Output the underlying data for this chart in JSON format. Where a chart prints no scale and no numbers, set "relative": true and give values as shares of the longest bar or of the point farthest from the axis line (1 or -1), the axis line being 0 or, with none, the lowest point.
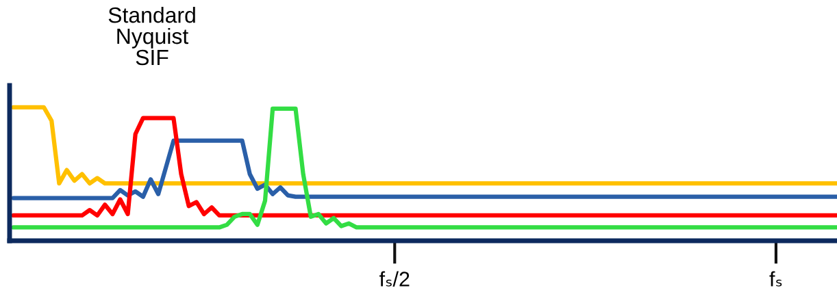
{
  "chart_data": {
    "type": "line",
    "relative": true,
    "title": "Standard\nNyquist\nSIF",
    "grid": false,
    "legend": false,
    "marker": "none",
    "line_style": "solid",
    "categories": [
      null,
      null,
      null,
      null,
      null,
      null,
      null,
      null,
      null,
      null,
      null,
      null,
      null,
      null,
      null,
      null,
      null,
      null,
      null,
      null,
      null,
      null,
      null,
      null,
      null,
      null,
      null,
      null,
      null,
      null,
      null,
      null,
      null,
      null,
      null,
      null,
      null,
      null,
      null,
      null,
      null,
      null,
      null,
      null,
      null,
      null,
      null,
      null,
      null,
      null,
      "fₛ/2",
      null,
      null,
      null,
      null,
      null,
      null,
      null,
      null,
      null,
      null,
      null,
      null,
      null,
      null,
      null,
      null,
      null,
      null,
      null,
      null,
      null,
      null,
      null,
      null,
      null,
      null,
      null,
      null,
      null,
      null,
      null,
      null,
      null,
      null,
      null,
      null,
      null,
      null,
      null,
      null,
      null,
      null,
      null,
      null,
      null,
      null,
      null,
      null,
      null,
      "fₛ",
      null,
      null,
      null,
      null,
      null,
      null,
      null,
      null
    ],
    "series": [
      {
        "color": "#ffc000",
        "values": [
          1,
          1,
          1,
          1,
          1,
          0.9,
          0.43,
          0.53,
          0.45,
          0.5,
          0.43,
          0.47,
          0.43,
          0.43,
          0.43,
          0.43,
          0.43,
          0.43,
          0.43,
          0.43,
          0.43,
          0.43,
          0.43,
          0.43,
          0.43,
          0.43,
          0.43,
          0.43,
          0.43,
          0.43,
          0.43,
          0.43,
          0.43,
          0.43,
          0.43,
          0.43,
          0.43,
          0.43,
          0.43,
          0.43,
          0.43,
          0.43,
          0.43,
          0.43,
          0.43,
          0.43,
          0.43,
          0.43,
          0.43,
          0.43,
          0.43,
          0.43,
          0.43,
          0.43,
          0.43,
          0.43,
          0.43,
          0.43,
          0.43,
          0.43,
          0.43,
          0.43,
          0.43,
          0.43,
          0.43,
          0.43,
          0.43,
          0.43,
          0.43,
          0.43,
          0.43,
          0.43,
          0.43,
          0.43,
          0.43,
          0.43,
          0.43,
          0.43,
          0.43,
          0.43,
          0.43,
          0.43,
          0.43,
          0.43,
          0.43,
          0.43,
          0.43,
          0.43,
          0.43,
          0.43,
          0.43,
          0.43,
          0.43,
          0.43,
          0.43,
          0.43,
          0.43,
          0.43,
          0.43,
          0.43,
          0.43,
          0.43,
          0.43,
          0.43,
          0.43,
          0.43,
          0.43,
          0.43,
          0.43
        ]
      },
      {
        "color": "#2a5fa8",
        "values": [
          0.32,
          0.32,
          0.32,
          0.32,
          0.32,
          0.32,
          0.32,
          0.32,
          0.32,
          0.32,
          0.32,
          0.32,
          0.32,
          0.32,
          0.38,
          0.34,
          0.37,
          0.33,
          0.46,
          0.35,
          0.55,
          0.75,
          0.75,
          0.75,
          0.75,
          0.75,
          0.75,
          0.75,
          0.75,
          0.75,
          0.75,
          0.5,
          0.39,
          0.42,
          0.35,
          0.4,
          0.34,
          0.33,
          0.33,
          0.33,
          0.33,
          0.33,
          0.33,
          0.33,
          0.33,
          0.33,
          0.33,
          0.33,
          0.33,
          0.33,
          0.33,
          0.33,
          0.33,
          0.33,
          0.33,
          0.33,
          0.33,
          0.33,
          0.33,
          0.33,
          0.33,
          0.33,
          0.33,
          0.33,
          0.33,
          0.33,
          0.33,
          0.33,
          0.33,
          0.33,
          0.33,
          0.33,
          0.33,
          0.33,
          0.33,
          0.33,
          0.33,
          0.33,
          0.33,
          0.33,
          0.33,
          0.33,
          0.33,
          0.33,
          0.33,
          0.33,
          0.33,
          0.33,
          0.33,
          0.33,
          0.33,
          0.33,
          0.33,
          0.33,
          0.33,
          0.33,
          0.33,
          0.33,
          0.33,
          0.33,
          0.33,
          0.33,
          0.33,
          0.33,
          0.33,
          0.33,
          0.33,
          0.33,
          0.33
        ]
      },
      {
        "color": "#ff0000",
        "values": [
          0.19,
          0.19,
          0.19,
          0.19,
          0.19,
          0.19,
          0.19,
          0.19,
          0.19,
          0.19,
          0.23,
          0.19,
          0.27,
          0.2,
          0.31,
          0.2,
          0.8,
          0.92,
          0.92,
          0.92,
          0.92,
          0.92,
          0.5,
          0.26,
          0.29,
          0.2,
          0.25,
          0.19,
          0.19,
          0.19,
          0.19,
          0.19,
          0.19,
          0.19,
          0.19,
          0.19,
          0.19,
          0.19,
          0.19,
          0.19,
          0.19,
          0.19,
          0.19,
          0.19,
          0.19,
          0.19,
          0.19,
          0.19,
          0.19,
          0.19,
          0.19,
          0.19,
          0.19,
          0.19,
          0.19,
          0.19,
          0.19,
          0.19,
          0.19,
          0.19,
          0.19,
          0.19,
          0.19,
          0.19,
          0.19,
          0.19,
          0.19,
          0.19,
          0.19,
          0.19,
          0.19,
          0.19,
          0.19,
          0.19,
          0.19,
          0.19,
          0.19,
          0.19,
          0.19,
          0.19,
          0.19,
          0.19,
          0.19,
          0.19,
          0.19,
          0.19,
          0.19,
          0.19,
          0.19,
          0.19,
          0.19,
          0.19,
          0.19,
          0.19,
          0.19,
          0.19,
          0.19,
          0.19,
          0.19,
          0.19,
          0.19,
          0.19,
          0.19,
          0.19,
          0.19,
          0.19,
          0.19,
          0.19,
          0.19
        ]
      },
      {
        "color": "#33dd44",
        "values": [
          0.1,
          0.1,
          0.1,
          0.1,
          0.1,
          0.1,
          0.1,
          0.1,
          0.1,
          0.1,
          0.1,
          0.1,
          0.1,
          0.1,
          0.1,
          0.1,
          0.1,
          0.1,
          0.1,
          0.1,
          0.1,
          0.1,
          0.1,
          0.1,
          0.1,
          0.1,
          0.1,
          0.1,
          0.12,
          0.18,
          0.2,
          0.2,
          0.12,
          0.3,
          0.99,
          0.99,
          0.99,
          0.99,
          0.5,
          0.18,
          0.2,
          0.13,
          0.17,
          0.11,
          0.13,
          0.1,
          0.1,
          0.1,
          0.1,
          0.1,
          0.1,
          0.1,
          0.1,
          0.1,
          0.1,
          0.1,
          0.1,
          0.1,
          0.1,
          0.1,
          0.1,
          0.1,
          0.1,
          0.1,
          0.1,
          0.1,
          0.1,
          0.1,
          0.1,
          0.1,
          0.1,
          0.1,
          0.1,
          0.1,
          0.1,
          0.1,
          0.1,
          0.1,
          0.1,
          0.1,
          0.1,
          0.1,
          0.1,
          0.1,
          0.1,
          0.1,
          0.1,
          0.1,
          0.1,
          0.1,
          0.1,
          0.1,
          0.1,
          0.1,
          0.1,
          0.1,
          0.1,
          0.1,
          0.1,
          0.1,
          0.1,
          0.1,
          0.1,
          0.1,
          0.1,
          0.1,
          0.1,
          0.1,
          0.1
        ]
      }
    ]
  }
}
